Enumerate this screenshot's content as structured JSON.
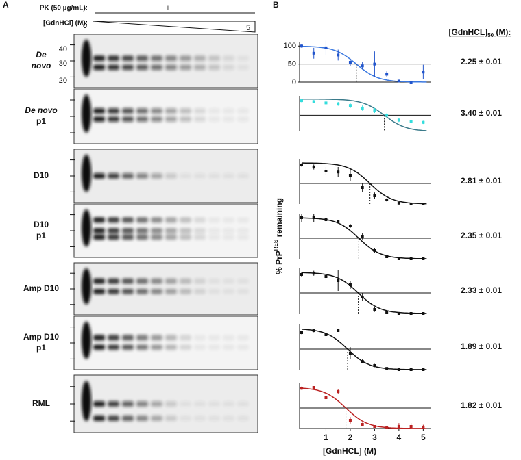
{
  "panel_a": {
    "label": "A",
    "pk_label": "PK (50 µg/mL):",
    "pk_minus": "-",
    "pk_plus": "+",
    "gdn_label": "[GdnHCl] (M):",
    "gdn_start": "0",
    "gdn_end": "5",
    "mw_markers": [
      "40",
      "30",
      "20"
    ],
    "blots": [
      {
        "label": [
          "De",
          "novo"
        ]
      },
      {
        "label": [
          "De novo",
          "p1"
        ]
      },
      {
        "label": [
          "D10"
        ]
      },
      {
        "label": [
          "D10",
          "p1"
        ]
      },
      {
        "label": [
          "Amp D10"
        ]
      },
      {
        "label": [
          "Amp D10",
          "p1"
        ]
      },
      {
        "label": [
          "RML"
        ]
      }
    ]
  },
  "panel_b": {
    "label": "B",
    "y_label": "% PrP",
    "y_label_sup": "RES",
    "y_label_tail": " remaining",
    "x_label": "[GdnHCL] (M)",
    "result_header": "[GdnHCL]",
    "result_header_sub": "50",
    "result_header_tail": " (M):",
    "xlim": [
      0,
      5.3
    ],
    "xticks": [
      1,
      2,
      3,
      4,
      5
    ],
    "ylim": [
      0,
      110
    ],
    "yticks": [
      0,
      50,
      100
    ],
    "x": [
      0,
      0.5,
      1,
      1.5,
      2,
      2.5,
      3,
      3.5,
      4,
      4.5,
      5
    ],
    "plots": [
      {
        "color": "#2255cc",
        "line_color": "#3a78e0",
        "values": [
          100,
          80,
          95,
          75,
          55,
          45,
          50,
          22,
          3,
          0,
          28
        ],
        "errors": [
          5,
          15,
          20,
          15,
          10,
          10,
          35,
          8,
          3,
          3,
          20
        ],
        "midpoint": 2.25,
        "result": "2.25 ± 0.01"
      },
      {
        "color": "#33dddd",
        "line_color": "#3a7a8a",
        "values": [
          95,
          92,
          88,
          85,
          80,
          72,
          65,
          50,
          35,
          30,
          28
        ],
        "errors": [
          5,
          5,
          8,
          6,
          8,
          8,
          8,
          6,
          6,
          5,
          5
        ],
        "midpoint": 3.4,
        "result": "3.40 ± 0.01"
      },
      {
        "color": "#111111",
        "line_color": "#111111",
        "values": [
          95,
          90,
          80,
          78,
          70,
          40,
          20,
          10,
          2,
          0,
          0
        ],
        "errors": [
          4,
          6,
          10,
          12,
          15,
          10,
          8,
          4,
          2,
          2,
          2
        ],
        "midpoint": 2.81,
        "result": "2.81 ± 0.01"
      },
      {
        "color": "#111111",
        "line_color": "#111111",
        "values": [
          100,
          100,
          95,
          90,
          80,
          55,
          20,
          5,
          0,
          0,
          0
        ],
        "errors": [
          10,
          10,
          5,
          4,
          5,
          8,
          6,
          3,
          2,
          2,
          2
        ],
        "midpoint": 2.35,
        "result": "2.35 ± 0.01"
      },
      {
        "color": "#111111",
        "line_color": "#111111",
        "values": [
          95,
          98,
          90,
          80,
          70,
          40,
          10,
          2,
          0,
          0,
          0
        ],
        "errors": [
          6,
          6,
          8,
          25,
          10,
          10,
          6,
          2,
          2,
          2,
          2
        ],
        "midpoint": 2.33,
        "result": "2.33 ± 0.01"
      },
      {
        "color": "#111111",
        "line_color": "#111111",
        "values": [
          90,
          95,
          85,
          95,
          40,
          20,
          10,
          3,
          0,
          0,
          0
        ],
        "errors": [
          4,
          4,
          4,
          3,
          15,
          5,
          4,
          2,
          2,
          2,
          2
        ],
        "midpoint": 1.89,
        "result": "1.89 ± 0.01"
      },
      {
        "color": "#bb2222",
        "line_color": "#bb2222",
        "values": [
          98,
          100,
          75,
          90,
          20,
          10,
          5,
          2,
          5,
          5,
          3
        ],
        "errors": [
          4,
          3,
          6,
          5,
          8,
          4,
          3,
          2,
          8,
          8,
          6
        ],
        "midpoint": 1.82,
        "result": "1.82 ± 0.01"
      }
    ]
  }
}
